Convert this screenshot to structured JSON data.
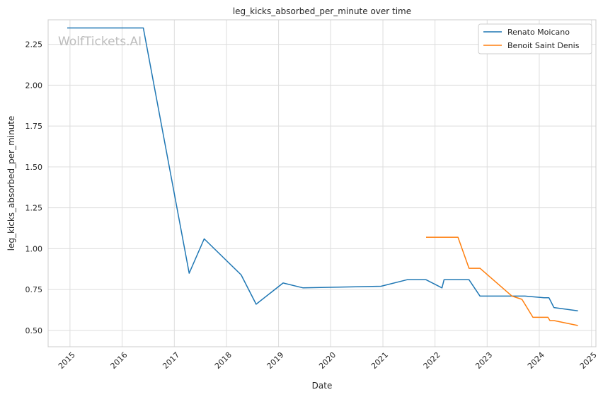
{
  "chart_data": {
    "type": "line",
    "title": "leg_kicks_absorbed_per_minute over time",
    "xlabel": "Date",
    "ylabel": "leg_kicks_absorbed_per_minute",
    "watermark": "WolfTickets.AI",
    "xlim": [
      "2014-08-01",
      "2025-02-01"
    ],
    "ylim": [
      0.4,
      2.4
    ],
    "yticks": [
      0.5,
      0.75,
      1.0,
      1.25,
      1.5,
      1.75,
      2.0,
      2.25
    ],
    "ytick_labels": [
      "0.50",
      "0.75",
      "1.00",
      "1.25",
      "1.50",
      "1.75",
      "2.00",
      "2.25"
    ],
    "xticks": [
      "2015-01-01",
      "2016-01-01",
      "2017-01-01",
      "2018-01-01",
      "2019-01-01",
      "2020-01-01",
      "2021-01-01",
      "2022-01-01",
      "2023-01-01",
      "2024-01-01",
      "2025-01-01"
    ],
    "xtick_labels": [
      "2015",
      "2016",
      "2017",
      "2018",
      "2019",
      "2020",
      "2021",
      "2022",
      "2023",
      "2024",
      "2025"
    ],
    "grid": true,
    "legend_position": "top-right",
    "series": [
      {
        "name": "Renato Moicano",
        "color": "#1f77b4",
        "points": [
          [
            "2014-12-13",
            2.35
          ],
          [
            "2016-05-29",
            2.35
          ],
          [
            "2017-04-15",
            0.85
          ],
          [
            "2017-07-29",
            1.06
          ],
          [
            "2018-04-14",
            0.84
          ],
          [
            "2018-07-28",
            0.66
          ],
          [
            "2019-02-02",
            0.79
          ],
          [
            "2019-06-22",
            0.76
          ],
          [
            "2020-12-19",
            0.77
          ],
          [
            "2021-06-19",
            0.81
          ],
          [
            "2021-10-30",
            0.81
          ],
          [
            "2022-02-19",
            0.76
          ],
          [
            "2022-03-05",
            0.81
          ],
          [
            "2022-08-27",
            0.81
          ],
          [
            "2022-11-12",
            0.71
          ],
          [
            "2023-09-23",
            0.71
          ],
          [
            "2024-02-03",
            0.7
          ],
          [
            "2024-03-09",
            0.7
          ],
          [
            "2024-04-13",
            0.64
          ],
          [
            "2024-09-28",
            0.62
          ]
        ]
      },
      {
        "name": "Benoit Saint Denis",
        "color": "#ff7f0e",
        "points": [
          [
            "2021-10-30",
            1.07
          ],
          [
            "2022-06-11",
            1.07
          ],
          [
            "2022-08-27",
            0.88
          ],
          [
            "2022-11-12",
            0.88
          ],
          [
            "2023-06-24",
            0.71
          ],
          [
            "2023-09-02",
            0.69
          ],
          [
            "2023-11-18",
            0.58
          ],
          [
            "2024-03-02",
            0.58
          ],
          [
            "2024-03-16",
            0.56
          ],
          [
            "2024-04-13",
            0.56
          ],
          [
            "2024-09-28",
            0.53
          ]
        ]
      }
    ]
  }
}
